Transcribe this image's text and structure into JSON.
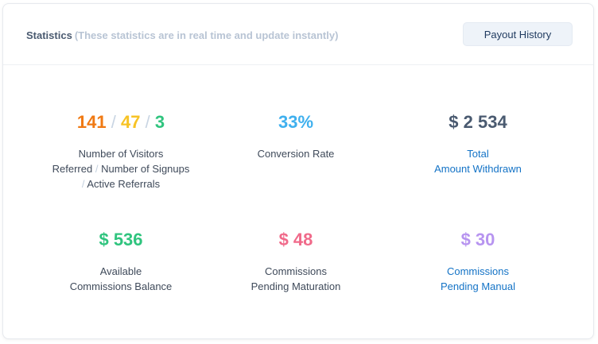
{
  "header": {
    "title": "Statistics",
    "subtitle": "(These statistics are in real time and update instantly)",
    "payout_button": "Payout History"
  },
  "stats": {
    "visitors": {
      "visitors_value": "141",
      "signups_value": "47",
      "referrals_value": "3",
      "separator": "/",
      "label_line1": "Number of Visitors",
      "label_line2a": "Referred",
      "label_line2b": "Number of Signups",
      "label_line3": "Active Referrals"
    },
    "conversion": {
      "value": "33%",
      "label": "Conversion Rate"
    },
    "withdrawn": {
      "value": "$ 2 534",
      "label_line1": "Total",
      "label_line2": "Amount Withdrawn"
    },
    "available": {
      "value": "$ 536",
      "label_line1": "Available",
      "label_line2": "Commissions Balance"
    },
    "maturation": {
      "value": "$ 48",
      "label_line1": "Commissions",
      "label_line2": "Pending Maturation"
    },
    "manual": {
      "value": "$ 30",
      "label_line1": "Commissions",
      "label_line2": "Pending Manual"
    }
  },
  "colors": {
    "visitors": "#f07a14",
    "signups": "#f7c325",
    "referrals": "#2fc47e",
    "conversion": "#3fb0ee",
    "withdrawn": "#4a5a70",
    "available": "#2fc47e",
    "maturation": "#f06a8a",
    "manual": "#b794f0",
    "link": "#1473c6"
  }
}
